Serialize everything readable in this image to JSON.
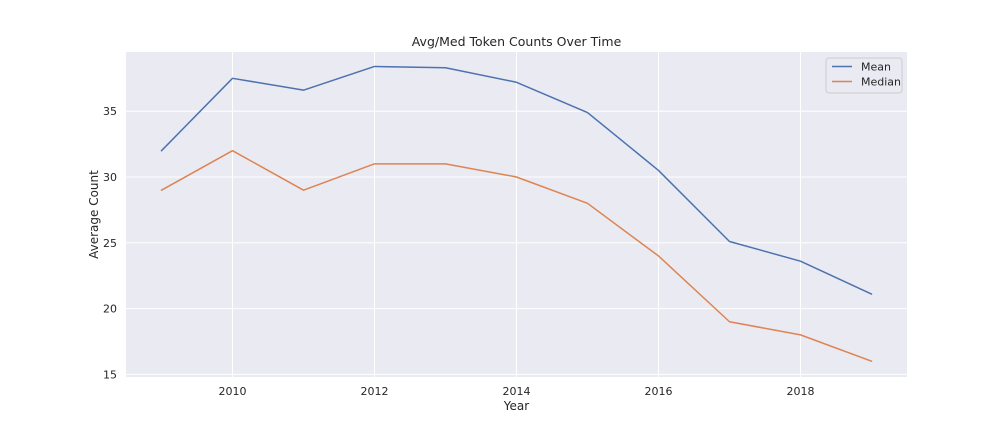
{
  "chart_data": {
    "type": "line",
    "title": "Avg/Med Token Counts Over Time",
    "xlabel": "Year",
    "ylabel": "Average Count",
    "x": [
      2009,
      2010,
      2011,
      2012,
      2013,
      2014,
      2015,
      2016,
      2017,
      2018,
      2019
    ],
    "xticks": [
      2010,
      2012,
      2014,
      2016,
      2018
    ],
    "yticks": [
      15,
      20,
      25,
      30,
      35
    ],
    "xlim": [
      2008.5,
      2019.5
    ],
    "ylim": [
      14.8,
      39.5
    ],
    "grid": true,
    "legend_position": "top-right",
    "background_color": "#eaeaf2",
    "series": [
      {
        "name": "Mean",
        "color": "#4c72b0",
        "values": [
          32.0,
          37.5,
          36.6,
          38.4,
          38.3,
          37.2,
          34.9,
          30.5,
          25.1,
          23.6,
          21.1
        ]
      },
      {
        "name": "Median",
        "color": "#dd8452",
        "values": [
          29.0,
          32.0,
          29.0,
          31.0,
          31.0,
          30.0,
          28.0,
          24.0,
          19.0,
          18.0,
          16.0
        ]
      }
    ]
  }
}
